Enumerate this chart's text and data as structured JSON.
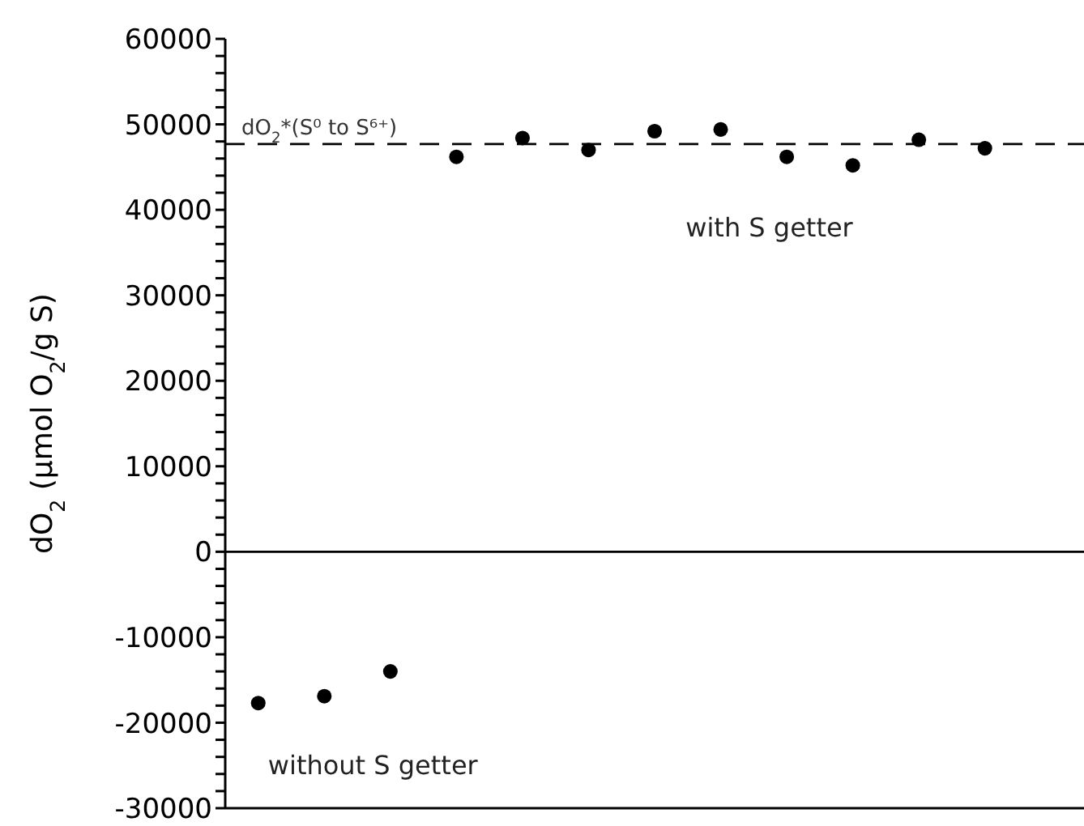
{
  "chart_data": {
    "type": "scatter",
    "ylabel": "dO$_{2}$ (µmol O$_{2}$/g S)",
    "categories": [
      null,
      null,
      null,
      null,
      null,
      null,
      null,
      null,
      null,
      null,
      null,
      null,
      null
    ],
    "series": [
      {
        "name": "without S getter",
        "color": "#000000",
        "values": [
          -17700,
          -16900,
          -14000,
          null,
          null,
          null,
          null,
          null,
          null,
          null,
          null,
          null,
          null
        ]
      },
      {
        "name": "with S getter",
        "color": "#000000",
        "values": [
          null,
          null,
          null,
          46200,
          48400,
          47000,
          49200,
          49400,
          46200,
          45200,
          48200,
          47200,
          null
        ]
      }
    ],
    "ylim": [
      -30000,
      60000
    ],
    "yticks": [
      -30000,
      {
        "value": -28000,
        "label": null
      },
      {
        "value": -26000,
        "label": null
      },
      {
        "value": -24000,
        "label": null
      },
      {
        "value": -22000,
        "label": null
      },
      -20000,
      {
        "value": -18000,
        "label": null
      },
      {
        "value": -16000,
        "label": null
      },
      {
        "value": -14000,
        "label": null
      },
      {
        "value": -12000,
        "label": null
      },
      -10000,
      {
        "value": -8000,
        "label": null
      },
      {
        "value": -6000,
        "label": null
      },
      {
        "value": -4000,
        "label": null
      },
      {
        "value": -2000,
        "label": null
      },
      0,
      {
        "value": 2000,
        "label": null
      },
      {
        "value": 4000,
        "label": null
      },
      {
        "value": 6000,
        "label": null
      },
      {
        "value": 8000,
        "label": null
      },
      10000,
      {
        "value": 12000,
        "label": null
      },
      {
        "value": 14000,
        "label": null
      },
      {
        "value": 16000,
        "label": null
      },
      {
        "value": 18000,
        "label": null
      },
      20000,
      {
        "value": 22000,
        "label": null
      },
      {
        "value": 24000,
        "label": null
      },
      {
        "value": 26000,
        "label": null
      },
      {
        "value": 28000,
        "label": null
      },
      30000,
      {
        "value": 32000,
        "label": null
      },
      {
        "value": 34000,
        "label": null
      },
      {
        "value": 36000,
        "label": null
      },
      {
        "value": 38000,
        "label": null
      },
      40000,
      {
        "value": 42000,
        "label": null
      },
      {
        "value": 44000,
        "label": null
      },
      {
        "value": 46000,
        "label": null
      },
      {
        "value": 48000,
        "label": null
      },
      50000,
      {
        "value": 52000,
        "label": null
      },
      {
        "value": 54000,
        "label": null
      },
      {
        "value": 56000,
        "label": null
      },
      {
        "value": 58000,
        "label": null
      },
      60000
    ],
    "ref_lines": [
      {
        "axis": "y",
        "value": 47700,
        "label": "dO$_{2}$*(S⁰ to S⁶⁺)",
        "line_style": "dashed",
        "color": "#000000"
      },
      {
        "axis": "y",
        "value": 0,
        "color": "#000000",
        "line_style": "solid"
      }
    ],
    "marker": "circle",
    "grid": false,
    "legend": false,
    "tick_labels": "y"
  }
}
